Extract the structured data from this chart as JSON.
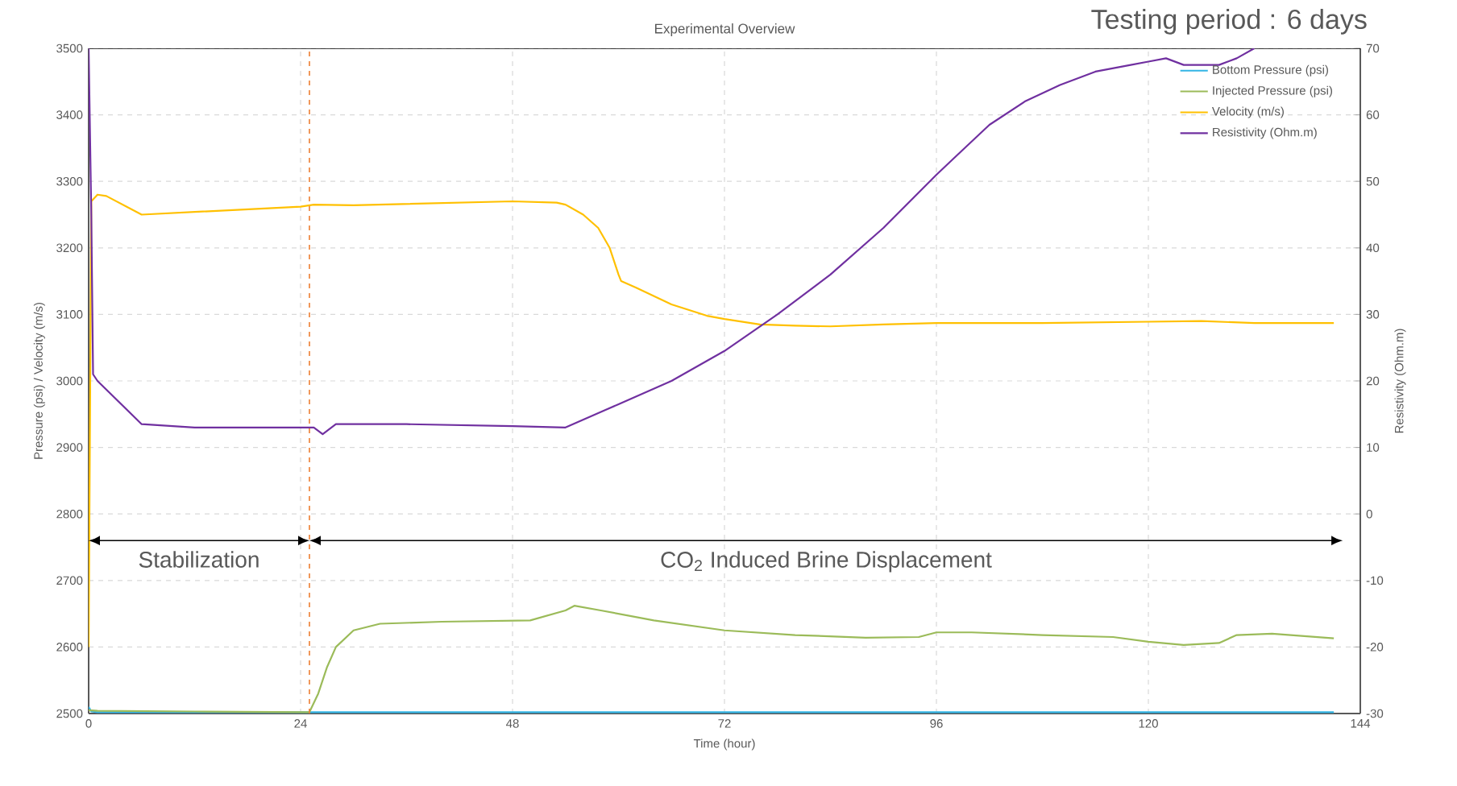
{
  "chart_data": {
    "type": "line",
    "title": "Experimental Overview",
    "subtitle": "Testing period : 6 days",
    "xlabel": "Time (hour)",
    "ylabel": "Pressure (psi) / Velocity (m/s)",
    "y2label": "Resistivity (Ohm.m)",
    "xlim": [
      0,
      144
    ],
    "xticks": [
      0,
      24,
      48,
      72,
      96,
      120,
      144
    ],
    "ylim": [
      2500,
      3500
    ],
    "yticks": [
      2500,
      2600,
      2700,
      2800,
      2900,
      3000,
      3100,
      3200,
      3300,
      3400,
      3500
    ],
    "y2lim": [
      -30,
      70
    ],
    "y2ticks": [
      -30,
      -20,
      -10,
      0,
      10,
      20,
      30,
      40,
      50,
      60,
      70
    ],
    "grid": true,
    "legend": "top right",
    "series": [
      {
        "name": "Bottom Pressure (psi)",
        "color": "#33b5e5",
        "x": [
          0,
          0.3,
          1,
          24,
          48,
          72,
          96,
          120,
          141
        ],
        "values": [
          2510,
          2503,
          2502,
          2502,
          2502,
          2502,
          2502,
          2502,
          2502
        ]
      },
      {
        "name": "Injected Pressure (psi)",
        "color": "#9bbb59",
        "x": [
          0,
          1,
          12,
          25,
          26,
          27,
          28,
          30,
          33,
          40,
          50,
          54,
          55,
          58,
          64,
          72,
          80,
          88,
          94,
          96,
          100,
          108,
          116,
          120,
          124,
          128,
          130,
          134,
          141
        ],
        "values": [
          2505,
          2504,
          2503,
          2502,
          2530,
          2570,
          2600,
          2625,
          2635,
          2638,
          2640,
          2655,
          2662,
          2655,
          2640,
          2625,
          2618,
          2614,
          2615,
          2622,
          2622,
          2618,
          2615,
          2608,
          2603,
          2606,
          2618,
          2620,
          2613
        ]
      },
      {
        "name": "Velocity (m/s)",
        "color": "#ffc000",
        "x": [
          0,
          0.3,
          1,
          2,
          6,
          24,
          25.5,
          30,
          48,
          53,
          54,
          56,
          57.7,
          59,
          60,
          60.3,
          62,
          66,
          70,
          72,
          76,
          80,
          84,
          90,
          96,
          108,
          120,
          126,
          132,
          141
        ],
        "values": [
          2600,
          3270,
          3280,
          3278,
          3250,
          3262,
          3265,
          3264,
          3270,
          3268,
          3265,
          3250,
          3230,
          3200,
          3160,
          3150,
          3140,
          3115,
          3098,
          3093,
          3085,
          3083,
          3082,
          3085,
          3087,
          3087,
          3089,
          3090,
          3087,
          3087
        ]
      },
      {
        "name": "Resistivity (Ohm.m)",
        "color": "#7030a0",
        "axis": "y2",
        "x": [
          0,
          0.3,
          0.5,
          1,
          6,
          12,
          24,
          25.5,
          26.5,
          28,
          36,
          48,
          54,
          60,
          66,
          72,
          78,
          84,
          90,
          96,
          98,
          102,
          106,
          110,
          114,
          118,
          120,
          122,
          124,
          128,
          130,
          132
        ],
        "values": [
          70,
          45,
          21,
          20,
          13.5,
          13,
          13,
          13,
          12,
          13.5,
          13.5,
          13.2,
          13,
          16.5,
          20,
          24.5,
          30,
          36,
          43,
          51,
          53.5,
          58.5,
          62,
          64.5,
          66.5,
          67.5,
          68,
          68.5,
          67.5,
          67.5,
          68.5,
          70
        ]
      }
    ],
    "ref_lines": [
      {
        "axis": "x",
        "value": 25,
        "color": "#ed7d31",
        "line_style": "dashed"
      }
    ],
    "annotations": [
      "Stabilization",
      "CO$_{2}$ Induced Brine Displacement"
    ]
  }
}
